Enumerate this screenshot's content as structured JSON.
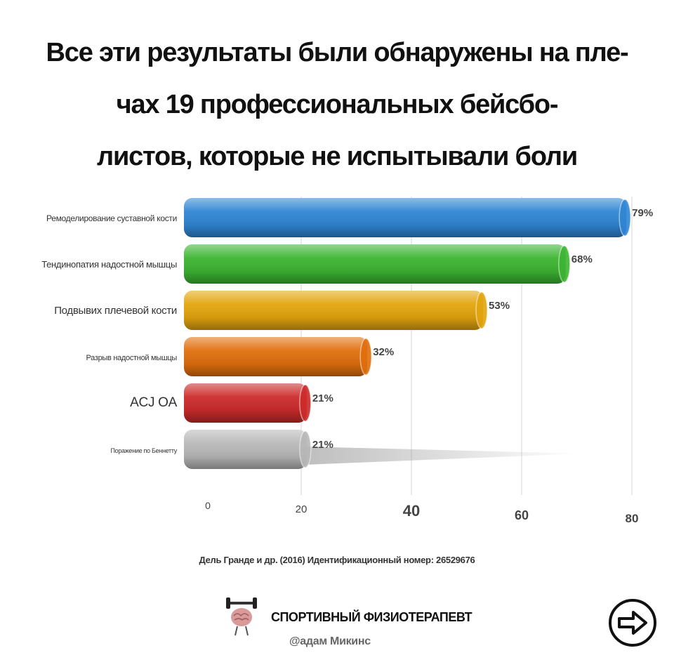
{
  "title_lines": [
    "Все эти результаты были обнаружены на пле-",
    "чах 19 профессиональных бейсбо-",
    "листов, которые не испытывали боли"
  ],
  "chart_data": {
    "type": "bar",
    "orientation": "horizontal",
    "title": "Все эти результаты были обнаружены на плечах 19 профессиональных бейсболистов, которые не испытывали боли",
    "categories": [
      "Ремоделирование суставной кости",
      "Тендинопатия надостной мышцы",
      "Подвывих плечевой кости",
      "Разрыв надостной мышцы",
      "ACJ OA",
      "Поражение по Беннетту"
    ],
    "values": [
      79,
      68,
      53,
      32,
      21,
      21
    ],
    "data_labels": [
      "79%",
      "68%",
      "53%",
      "32%",
      "21%",
      "21%"
    ],
    "bar_colors": [
      "#2f86d4",
      "#3cb532",
      "#e3a50e",
      "#e06f0d",
      "#cc2b2b",
      "#b8b8b8"
    ],
    "x_ticks": [
      "0",
      "20",
      "40",
      "60",
      "80"
    ],
    "x_tick_values": [
      0,
      20,
      40,
      60,
      80
    ],
    "xlim": [
      0,
      80
    ],
    "xlabel": "",
    "ylabel": "",
    "grid": true
  },
  "source": "Дель Гранде и др. (2016) Идентификационный номер: 26529676",
  "brand": {
    "name": "СПОРТИВНЫЙ ФИЗИОТЕРАПЕВТ",
    "handle": "@адам Микинс"
  },
  "icons": {
    "logo": "brain-dumbbell-icon",
    "next": "arrow-right-circle-icon"
  }
}
